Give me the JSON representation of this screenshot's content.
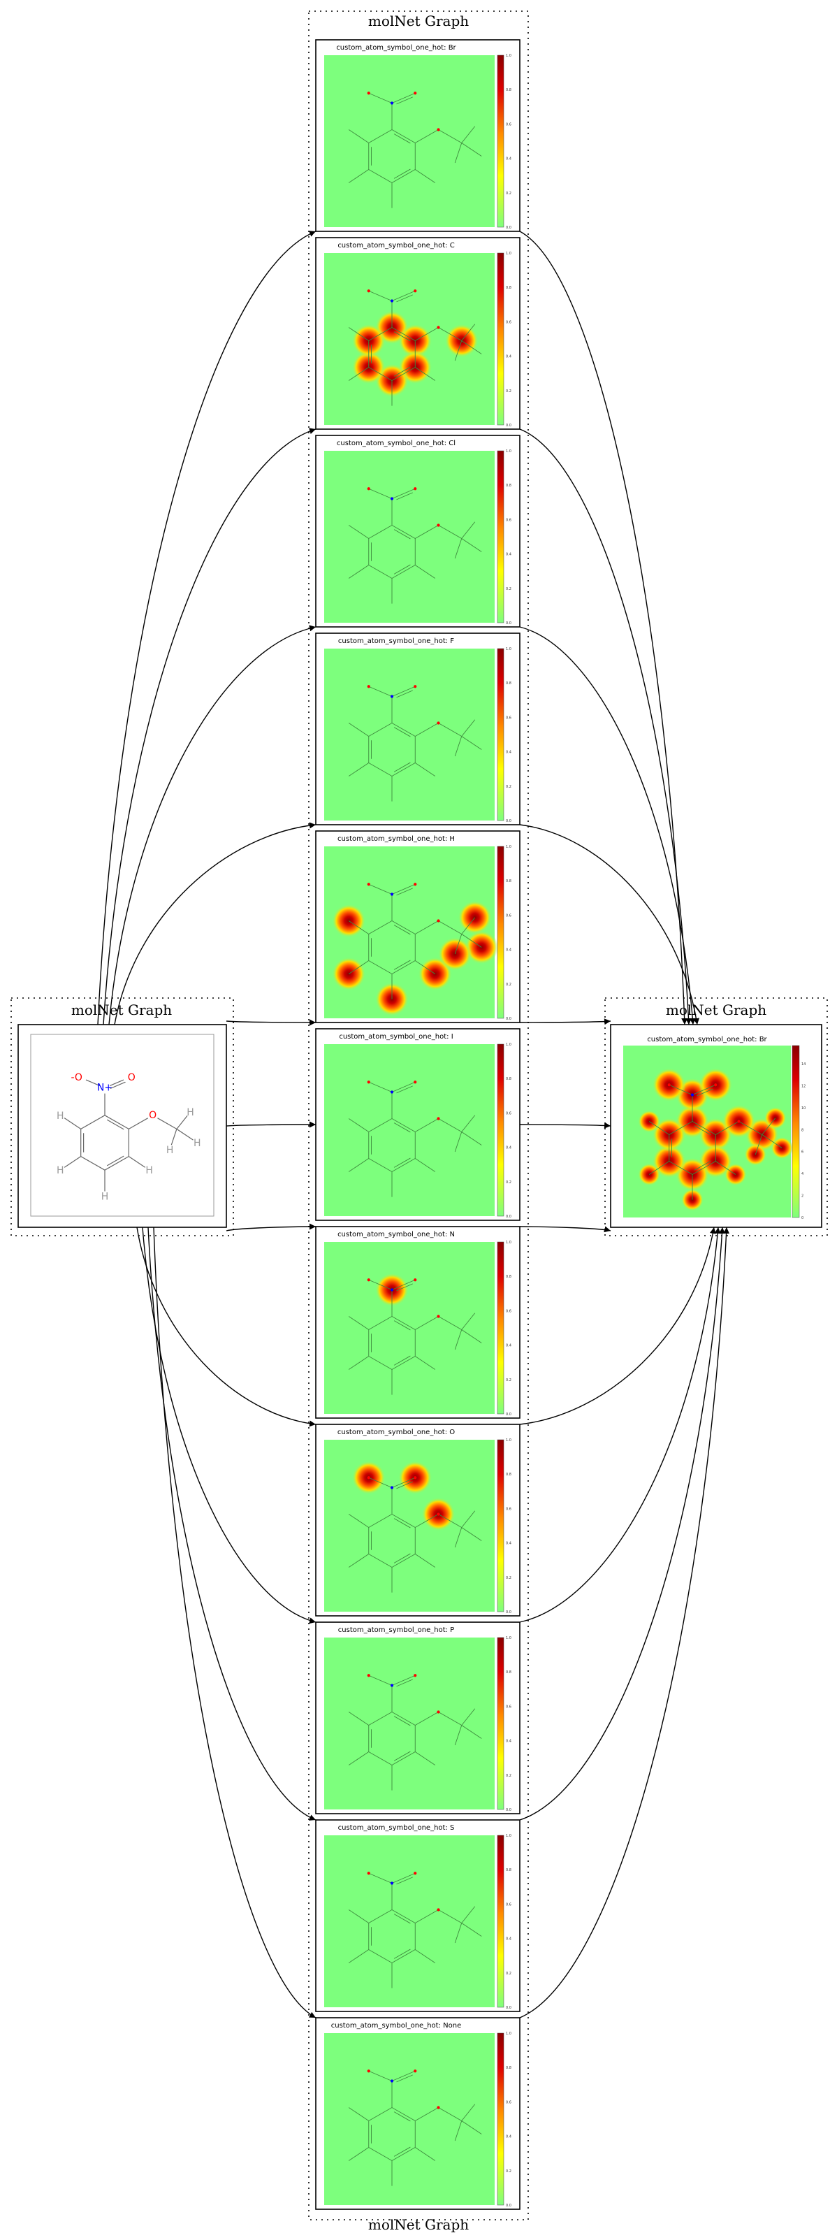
{
  "cluster_title": "molNet Graph",
  "input_node": {
    "title": "molNet Graph",
    "atoms": {
      "o_minus": "-O",
      "n_plus": "N+",
      "o1": "O",
      "o2": "O",
      "h": "H"
    }
  },
  "output_node": {
    "title": "molNet Graph",
    "panel_title": "custom_atom_symbol_one_hot: Br"
  },
  "colorbar_ticks": [
    "0.0",
    "0.2",
    "0.4",
    "0.6",
    "0.8",
    "1.0"
  ],
  "output_colorbar_ticks": [
    "0",
    "2",
    "4",
    "6",
    "8",
    "10",
    "12",
    "14"
  ],
  "panels": [
    {
      "title": "custom_atom_symbol_one_hot: Br",
      "symbol": "Br",
      "highlight": []
    },
    {
      "title": "custom_atom_symbol_one_hot: C",
      "symbol": "C",
      "highlight": [
        "c1",
        "c2",
        "c3",
        "c4",
        "c5",
        "c6",
        "cm"
      ]
    },
    {
      "title": "custom_atom_symbol_one_hot: Cl",
      "symbol": "Cl",
      "highlight": []
    },
    {
      "title": "custom_atom_symbol_one_hot: F",
      "symbol": "F",
      "highlight": []
    },
    {
      "title": "custom_atom_symbol_one_hot: H",
      "symbol": "H",
      "highlight": [
        "h3",
        "h4",
        "h5",
        "h6",
        "hm1",
        "hm2",
        "hm3"
      ]
    },
    {
      "title": "custom_atom_symbol_one_hot: I",
      "symbol": "I",
      "highlight": []
    },
    {
      "title": "custom_atom_symbol_one_hot: N",
      "symbol": "N",
      "highlight": [
        "n"
      ]
    },
    {
      "title": "custom_atom_symbol_one_hot: O",
      "symbol": "O",
      "highlight": [
        "o1",
        "o2",
        "oe"
      ]
    },
    {
      "title": "custom_atom_symbol_one_hot: P",
      "symbol": "P",
      "highlight": []
    },
    {
      "title": "custom_atom_symbol_one_hot: S",
      "symbol": "S",
      "highlight": []
    },
    {
      "title": "custom_atom_symbol_one_hot: None",
      "symbol": "None",
      "highlight": []
    }
  ],
  "colors": {
    "heatmap_bg": "#7dff7d",
    "arrow": "#000000",
    "carbon": "#555555",
    "nitrogen": "#0000ff",
    "oxygen": "#ff0000",
    "hydrogen": "#9a9a9a"
  }
}
